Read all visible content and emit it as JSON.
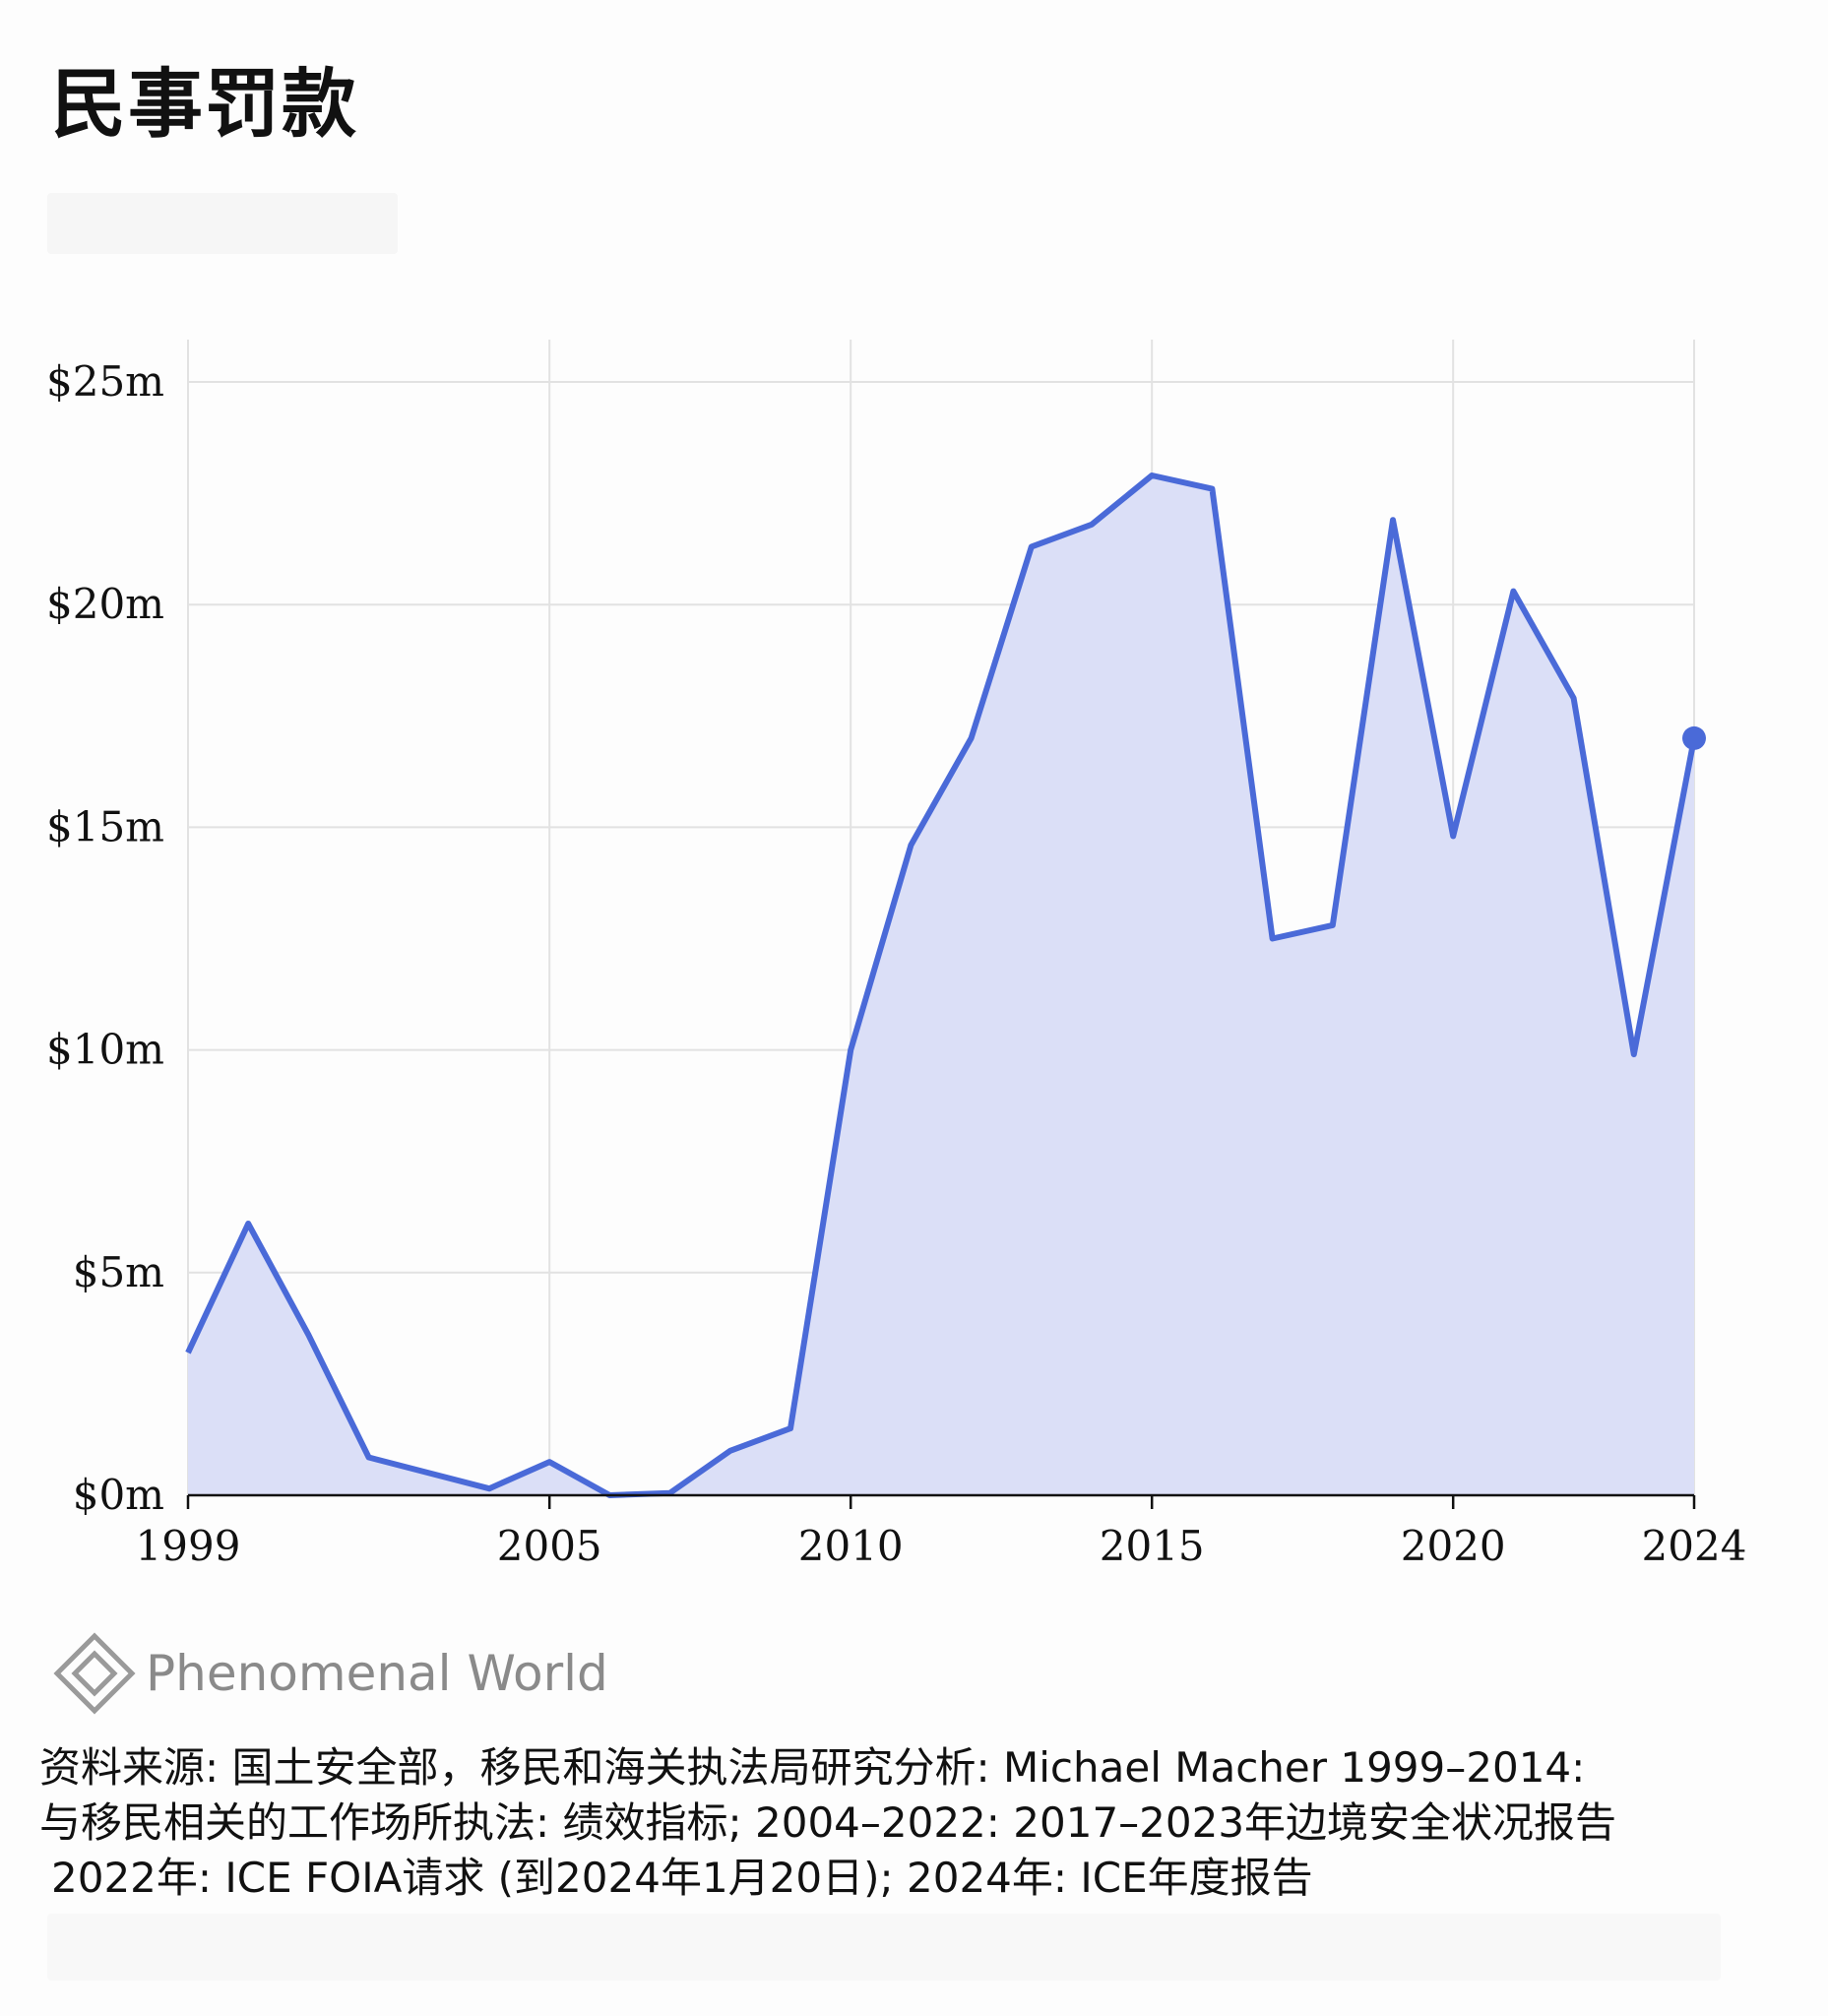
{
  "header": {
    "title": "民事罚款"
  },
  "brand": {
    "name": "Phenomenal World",
    "logo_icon": "diamond-logo-icon"
  },
  "source": {
    "line1": "资料来源: 国土安全部，移民和海关执法局研究分析: Michael Macher 1999–2014:",
    "line2": "与移民相关的工作场所执法: 绩效指标; 2004–2022: 2017–2023年边境安全状况报告",
    "line3": "2022年: ICE FOIA请求 (到2024年1月20日); 2024年: ICE年度报告"
  },
  "colors": {
    "line": "#4a6ad8",
    "area": "#dbdff7",
    "grid": "#e2e2e2",
    "axis": "#111111"
  },
  "chart_data": {
    "type": "area",
    "title": "民事罚款",
    "xlabel": "",
    "ylabel": "",
    "x": [
      1999,
      2000,
      2001,
      2002,
      2003,
      2004,
      2005,
      2006,
      2007,
      2008,
      2009,
      2010,
      2011,
      2012,
      2013,
      2014,
      2015,
      2016,
      2017,
      2018,
      2019,
      2020,
      2021,
      2022,
      2023,
      2024
    ],
    "series": [
      {
        "values": [
          3.2,
          6.1,
          3.6,
          0.85,
          0.5,
          0.15,
          0.75,
          0.0,
          0.05,
          1.0,
          1.5,
          10.0,
          14.6,
          17.0,
          21.3,
          21.8,
          22.9,
          22.6,
          12.5,
          12.8,
          21.9,
          14.8,
          20.3,
          17.9,
          9.9,
          17.0
        ]
      }
    ],
    "xlim": [
      1999,
      2024
    ],
    "ylim": [
      0,
      25
    ],
    "x_ticks": [
      1999,
      2005,
      2010,
      2015,
      2020,
      2024
    ],
    "y_ticks": [
      {
        "value": 0,
        "label": "$0m"
      },
      {
        "value": 5,
        "label": "$5m"
      },
      {
        "value": 10,
        "label": "$10m"
      },
      {
        "value": 15,
        "label": "$15m"
      },
      {
        "value": 20,
        "label": "$20m"
      },
      {
        "value": 25,
        "label": "$25m"
      }
    ],
    "grid": true,
    "last_point_marker": true
  }
}
